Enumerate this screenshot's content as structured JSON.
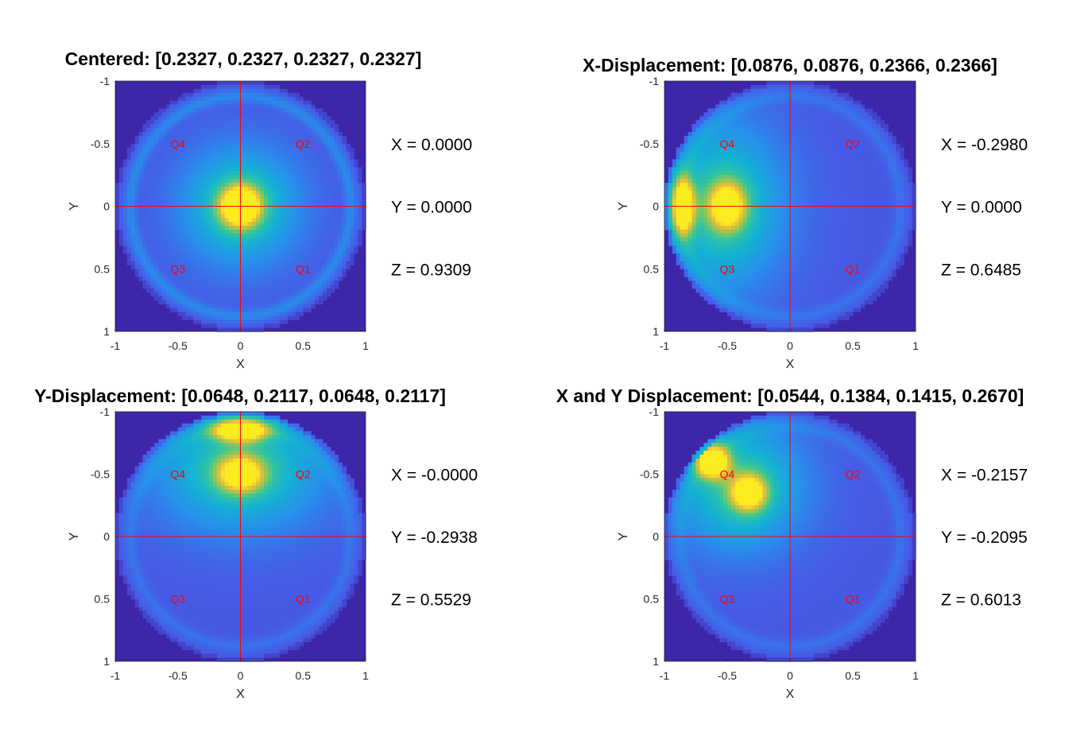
{
  "chart_data": [
    {
      "type": "heatmap",
      "title": "Centered: [0.2327, 0.2327, 0.2327, 0.2327]",
      "xlabel": "X",
      "ylabel": "Y",
      "xlim": [
        -1,
        1
      ],
      "ylim": [
        -1,
        1
      ],
      "y_reversed": true,
      "xticks": [
        "-1",
        "-0.5",
        "0",
        "0.5",
        "1"
      ],
      "yticks": [
        "-1",
        "-0.5",
        "0",
        "0.5",
        "1"
      ],
      "quadrants": [
        {
          "label": "Q4",
          "x": -0.5,
          "y": -0.5
        },
        {
          "label": "Q2",
          "x": 0.5,
          "y": -0.5
        },
        {
          "label": "Q3",
          "x": -0.5,
          "y": 0.5
        },
        {
          "label": "Q1",
          "x": 0.5,
          "y": 0.5
        }
      ],
      "spots": [
        {
          "x": 0.0,
          "y": 0.0,
          "sx": 0.11,
          "sy": 0.11,
          "a": 1.0
        },
        {
          "x": 0.0,
          "y": 0.0,
          "sx": 0.32,
          "sy": 0.32,
          "a": 0.45
        }
      ],
      "ring": 0.55,
      "readouts": [
        "X = 0.0000",
        "Y = 0.0000",
        "Z = 0.9309"
      ]
    },
    {
      "type": "heatmap",
      "title": "X-Displacement: [0.0876, 0.0876, 0.2366, 0.2366]",
      "xlabel": "X",
      "ylabel": "Y",
      "xlim": [
        -1,
        1
      ],
      "ylim": [
        -1,
        1
      ],
      "y_reversed": true,
      "xticks": [
        "-1",
        "-0.5",
        "0",
        "0.5",
        "1"
      ],
      "yticks": [
        "-1",
        "-0.5",
        "0",
        "0.5",
        "1"
      ],
      "quadrants": [
        {
          "label": "Q4",
          "x": -0.5,
          "y": -0.5
        },
        {
          "label": "Q2",
          "x": 0.5,
          "y": -0.5
        },
        {
          "label": "Q3",
          "x": -0.5,
          "y": 0.5
        },
        {
          "label": "Q1",
          "x": 0.5,
          "y": 0.5
        }
      ],
      "spots": [
        {
          "x": -0.85,
          "y": 0.0,
          "sx": 0.06,
          "sy": 0.15,
          "a": 1.0
        },
        {
          "x": -0.5,
          "y": 0.0,
          "sx": 0.1,
          "sy": 0.13,
          "a": 0.78
        },
        {
          "x": -0.55,
          "y": 0.0,
          "sx": 0.35,
          "sy": 0.45,
          "a": 0.45
        }
      ],
      "ring": 0.3,
      "readouts": [
        "X = -0.2980",
        "Y = 0.0000",
        "Z = 0.6485"
      ]
    },
    {
      "type": "heatmap",
      "title": "Y-Displacement: [0.0648, 0.2117, 0.0648, 0.2117]",
      "xlabel": "X",
      "ylabel": "Y",
      "xlim": [
        -1,
        1
      ],
      "ylim": [
        -1,
        1
      ],
      "y_reversed": true,
      "xticks": [
        "-1",
        "-0.5",
        "0",
        "0.5",
        "1"
      ],
      "yticks": [
        "-1",
        "-0.5",
        "0",
        "0.5",
        "1"
      ],
      "quadrants": [
        {
          "label": "Q4",
          "x": -0.5,
          "y": -0.5
        },
        {
          "label": "Q2",
          "x": 0.5,
          "y": -0.5
        },
        {
          "label": "Q3",
          "x": -0.5,
          "y": 0.5
        },
        {
          "label": "Q1",
          "x": 0.5,
          "y": 0.5
        }
      ],
      "spots": [
        {
          "x": 0.0,
          "y": -0.85,
          "sx": 0.15,
          "sy": 0.06,
          "a": 1.0
        },
        {
          "x": 0.0,
          "y": -0.5,
          "sx": 0.13,
          "sy": 0.1,
          "a": 0.75
        },
        {
          "x": 0.0,
          "y": -0.55,
          "sx": 0.45,
          "sy": 0.35,
          "a": 0.45
        }
      ],
      "ring": 0.3,
      "readouts": [
        "X = -0.0000",
        "Y = -0.2938",
        "Z = 0.5529"
      ]
    },
    {
      "type": "heatmap",
      "title": "X and Y Displacement: [0.0544, 0.1384, 0.1415, 0.2670]",
      "xlabel": "X",
      "ylabel": "Y",
      "xlim": [
        -1,
        1
      ],
      "ylim": [
        -1,
        1
      ],
      "y_reversed": true,
      "xticks": [
        "-1",
        "-0.5",
        "0",
        "0.5",
        "1"
      ],
      "yticks": [
        "-1",
        "-0.5",
        "0",
        "0.5",
        "1"
      ],
      "quadrants": [
        {
          "label": "Q4",
          "x": -0.5,
          "y": -0.5
        },
        {
          "label": "Q2",
          "x": 0.5,
          "y": -0.5
        },
        {
          "label": "Q3",
          "x": -0.5,
          "y": 0.5
        },
        {
          "label": "Q1",
          "x": 0.5,
          "y": 0.5
        }
      ],
      "spots": [
        {
          "x": -0.62,
          "y": -0.6,
          "sx": 0.09,
          "sy": 0.09,
          "a": 1.0
        },
        {
          "x": -0.33,
          "y": -0.35,
          "sx": 0.1,
          "sy": 0.1,
          "a": 0.78
        },
        {
          "x": -0.4,
          "y": -0.4,
          "sx": 0.35,
          "sy": 0.35,
          "a": 0.45
        }
      ],
      "ring": 0.3,
      "readouts": [
        "X = -0.2157",
        "Y = -0.2095",
        "Z = 0.6013"
      ]
    }
  ]
}
